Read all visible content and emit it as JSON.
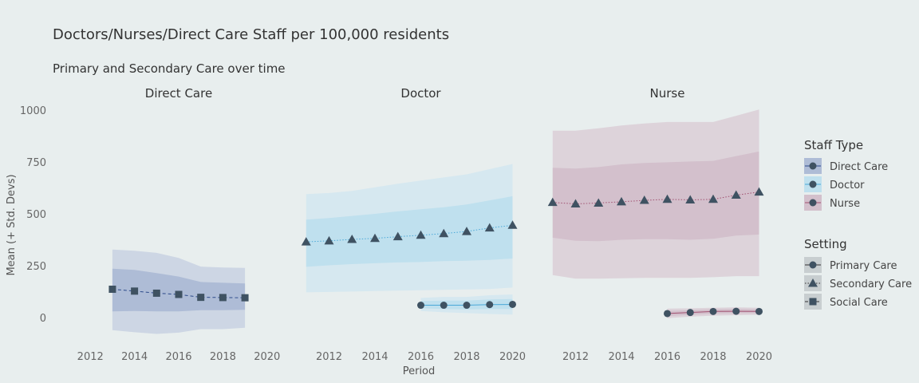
{
  "chart_data": {
    "type": "line",
    "title": "Doctors/Nurses/Direct Care Staff per 100,000 residents",
    "subtitle": "Primary and Secondary Care over time",
    "xlabel": "Period",
    "ylabel": "Mean (+ Std. Devs)",
    "xlim": [
      2010.8,
      2021.2
    ],
    "ylim": [
      -130,
      1030
    ],
    "x_ticks": [
      2012,
      2014,
      2016,
      2018,
      2020
    ],
    "y_ticks": [
      0,
      250,
      500,
      750,
      1000
    ],
    "facets": [
      {
        "name": "Direct Care",
        "staff_type": "Direct Care",
        "series": [
          {
            "setting": "Social Care",
            "x": [
              2013,
              2014,
              2015,
              2016,
              2017,
              2018,
              2019
            ],
            "mean": [
              137,
              128,
              118,
              112,
              98,
              97,
              96
            ],
            "sd1_lower": [
              30,
              32,
              30,
              30,
              36,
              36,
              38
            ],
            "sd1_upper": [
              236,
              230,
              215,
              198,
              172,
              168,
              165
            ],
            "sd2_lower": [
              -60,
              -70,
              -78,
              -72,
              -55,
              -55,
              -48
            ],
            "sd2_upper": [
              328,
              322,
              312,
              288,
              246,
              242,
              240
            ]
          }
        ]
      },
      {
        "name": "Doctor",
        "staff_type": "Doctor",
        "series": [
          {
            "setting": "Secondary Care",
            "x": [
              2011,
              2012,
              2013,
              2014,
              2015,
              2016,
              2017,
              2018,
              2019,
              2020
            ],
            "mean": [
              365,
              370,
              377,
              382,
              390,
              397,
              405,
              415,
              432,
              445
            ],
            "sd1_lower": [
              245,
              252,
              258,
              262,
              266,
              268,
              272,
              274,
              278,
              285
            ],
            "sd1_upper": [
              472,
              480,
              490,
              500,
              512,
              522,
              532,
              545,
              565,
              585
            ],
            "sd2_lower": [
              122,
              124,
              126,
              128,
              130,
              132,
              134,
              136,
              138,
              145
            ],
            "sd2_upper": [
              595,
              600,
              610,
              628,
              645,
              660,
              675,
              690,
              715,
              740
            ]
          },
          {
            "setting": "Primary Care",
            "x": [
              2016,
              2017,
              2018,
              2019,
              2020
            ],
            "mean": [
              60,
              60,
              60,
              63,
              64
            ],
            "sd1_lower": [
              45,
              42,
              40,
              42,
              42
            ],
            "sd1_upper": [
              80,
              82,
              82,
              88,
              90
            ],
            "sd2_lower": [
              32,
              26,
              22,
              18,
              15
            ],
            "sd2_upper": [
              95,
              100,
              100,
              108,
              112
            ]
          }
        ]
      },
      {
        "name": "Nurse",
        "staff_type": "Nurse",
        "series": [
          {
            "setting": "Secondary Care",
            "x": [
              2011,
              2012,
              2013,
              2014,
              2015,
              2016,
              2017,
              2018,
              2019,
              2020
            ],
            "mean": [
              555,
              548,
              552,
              558,
              565,
              570,
              567,
              570,
              590,
              605
            ],
            "sd1_lower": [
              385,
              370,
              368,
              375,
              378,
              378,
              375,
              380,
              395,
              400
            ],
            "sd1_upper": [
              722,
              718,
              725,
              738,
              745,
              748,
              752,
              755,
              778,
              800
            ],
            "sd2_lower": [
              205,
              188,
              188,
              190,
              192,
              192,
              192,
              195,
              200,
              200
            ],
            "sd2_upper": [
              900,
              900,
              912,
              925,
              935,
              942,
              942,
              942,
              972,
              1002
            ]
          },
          {
            "setting": "Primary Care",
            "x": [
              2016,
              2017,
              2018,
              2019,
              2020
            ],
            "mean": [
              20,
              25,
              30,
              31,
              30
            ],
            "sd1_lower": [
              8,
              14,
              20,
              22,
              22
            ],
            "sd1_upper": [
              32,
              36,
              40,
              42,
              40
            ],
            "sd2_lower": [
              -2,
              5,
              10,
              12,
              14
            ],
            "sd2_upper": [
              44,
              45,
              48,
              50,
              48
            ]
          }
        ]
      }
    ],
    "legend": {
      "placement": "right",
      "staff_type": {
        "title": "Staff Type",
        "entries": [
          {
            "label": "Direct Care",
            "color": "#2c4a8a"
          },
          {
            "label": "Doctor",
            "color": "#4aa8d8"
          },
          {
            "label": "Nurse",
            "color": "#a05070"
          }
        ]
      },
      "setting": {
        "title": "Setting",
        "entries": [
          {
            "label": "Primary Care",
            "marker": "circle",
            "line": "solid"
          },
          {
            "label": "Secondary Care",
            "marker": "triangle",
            "line": "dotted"
          },
          {
            "label": "Social Care",
            "marker": "square",
            "line": "dashed"
          }
        ]
      }
    },
    "colors": {
      "Direct Care": {
        "line": "#2c4a8a",
        "band_inner": "#aebcd6",
        "band_outer": "#cdd6e4"
      },
      "Doctor": {
        "line": "#4aa8d8",
        "band_inner": "#bfe0ee",
        "band_outer": "#d6e8f0"
      },
      "Nurse": {
        "line": "#a05070",
        "band_inner": "#d3c0cc",
        "band_outer": "#ddd3da"
      },
      "marker": "#3f5262"
    }
  }
}
